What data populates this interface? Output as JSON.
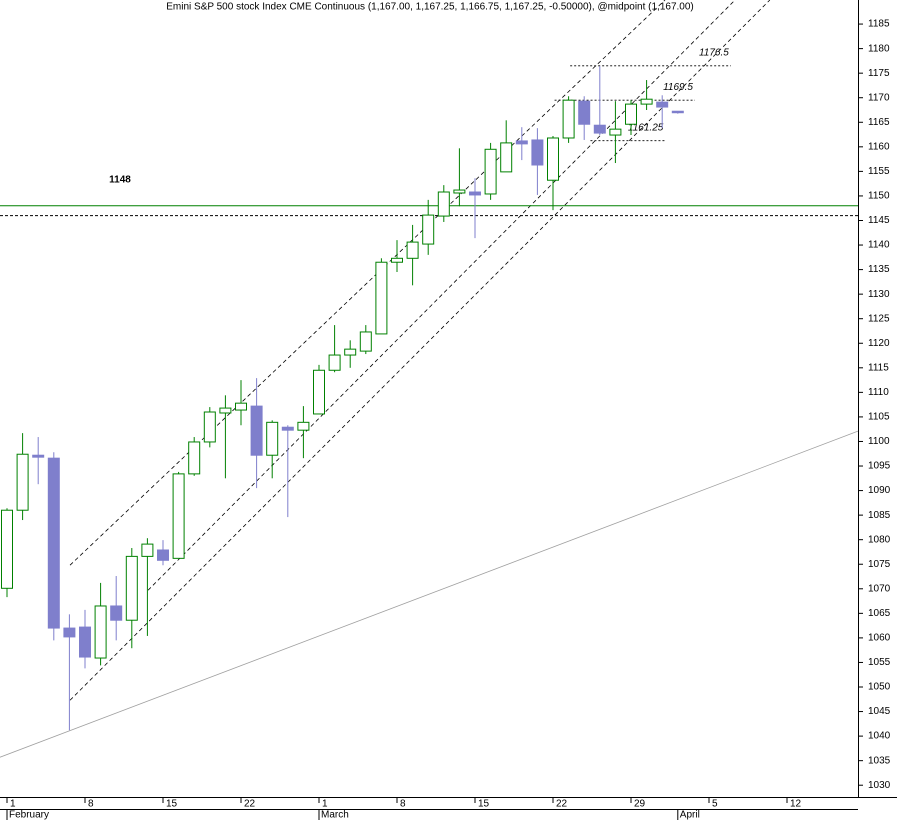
{
  "chart_data": {
    "type": "candlestick",
    "title": "Emini S&P 500 stock Index CME Continuous (1,167.00, 1,167.25, 1,166.75, 1,167.25, -0.50000), @midpoint (1,167.00)",
    "categories": [
      "1",
      null,
      null,
      null,
      null,
      "8",
      null,
      null,
      null,
      null,
      "15",
      null,
      null,
      null,
      null,
      "22",
      null,
      null,
      null,
      null,
      "1",
      null,
      null,
      null,
      null,
      "8",
      null,
      null,
      null,
      null,
      "15",
      null,
      null,
      null,
      null,
      "22",
      null,
      null,
      null,
      null,
      "29",
      null,
      null,
      null,
      null,
      "5",
      null,
      null,
      null,
      null,
      "12",
      null,
      null,
      null,
      null
    ],
    "months": [
      "February",
      null,
      null,
      null,
      null,
      null,
      null,
      null,
      null,
      null,
      null,
      null,
      null,
      null,
      null,
      null,
      null,
      null,
      null,
      null,
      "March",
      null,
      null,
      null,
      null,
      null,
      null,
      null,
      null,
      null,
      null,
      null,
      null,
      null,
      null,
      null,
      null,
      null,
      null,
      null,
      null,
      null,
      null,
      "April",
      null,
      null,
      null,
      null,
      null,
      null,
      null,
      null,
      null,
      null,
      null
    ],
    "open": [
      1070.1,
      1086.0,
      1097.2,
      1096.6,
      1062.0,
      1062.2,
      1055.9,
      1066.5,
      1063.6,
      1076.6,
      1077.9,
      1076.2,
      1093.4,
      1099.9,
      1105.8,
      1106.4,
      1107.2,
      1097.2,
      1102.9,
      1102.3,
      1105.6,
      1114.5,
      1117.6,
      1118.4,
      1121.9,
      1136.5,
      1137.3,
      1140.2,
      1145.9,
      1150.6,
      1150.8,
      1150.4,
      1154.9,
      1161.2,
      1161.4,
      1153.2,
      1161.8,
      1169.3,
      1164.4,
      1162.4,
      1164.6,
      1168.7,
      1169.1,
      1167.25,
      null,
      null,
      null,
      null,
      null,
      null,
      null,
      null,
      null,
      null,
      null
    ],
    "high": [
      1086.4,
      1101.7,
      1100.9,
      1097.8,
      1064.8,
      1065.7,
      1071.2,
      1072.6,
      1078.3,
      1080.3,
      1079.9,
      1093.8,
      1100.9,
      1107.0,
      1109.4,
      1112.5,
      1112.9,
      1104.3,
      1103.3,
      1107.2,
      1115.6,
      1123.7,
      1120.6,
      1123.7,
      1137.3,
      1141.0,
      1144.1,
      1149.2,
      1152.2,
      1159.7,
      1153.6,
      1160.8,
      1165.4,
      1164.0,
      1163.8,
      1162.2,
      1170.3,
      1170.3,
      1176.4,
      1169.3,
      1169.5,
      1173.6,
      1170.5,
      1167.25,
      null,
      null,
      null,
      null,
      null,
      null,
      null,
      null,
      null,
      null,
      null
    ],
    "low": [
      1068.3,
      1084.0,
      1091.3,
      1059.5,
      1041.2,
      1053.8,
      1054.4,
      1059.5,
      1057.9,
      1060.4,
      1074.8,
      1076.2,
      1093.0,
      1098.8,
      1092.5,
      1103.3,
      1090.5,
      1092.5,
      1084.6,
      1096.6,
      1105.6,
      1114.1,
      1115.0,
      1117.8,
      1121.9,
      1134.5,
      1131.8,
      1138.0,
      1144.7,
      1147.9,
      1141.4,
      1149.2,
      1154.9,
      1157.3,
      1150.2,
      1147.1,
      1160.8,
      1161.4,
      1162.4,
      1156.7,
      1162.4,
      1167.5,
      1163.8,
      1166.75,
      null,
      null,
      null,
      null,
      null,
      null,
      null,
      null,
      null,
      null,
      null
    ],
    "close": [
      1086.0,
      1097.4,
      1096.8,
      1062.0,
      1060.2,
      1056.1,
      1066.5,
      1063.6,
      1076.6,
      1079.1,
      1075.8,
      1093.4,
      1099.9,
      1106.0,
      1106.8,
      1107.8,
      1097.2,
      1103.9,
      1102.3,
      1103.9,
      1114.5,
      1117.6,
      1118.8,
      1122.3,
      1136.5,
      1137.3,
      1140.6,
      1146.1,
      1150.8,
      1151.2,
      1150.2,
      1159.5,
      1160.8,
      1160.6,
      1156.3,
      1161.8,
      1169.5,
      1164.6,
      1162.8,
      1163.6,
      1168.7,
      1169.7,
      1168.1,
      1167.0,
      null,
      null,
      null,
      null,
      null,
      null,
      null,
      null,
      null,
      null,
      null
    ],
    "up_color": "#008000",
    "down_color": "#7f7fcc",
    "ylim": [
      1027.6,
      1189.9
    ],
    "yticks": [
      1030,
      1035,
      1040,
      1045,
      1050,
      1055,
      1060,
      1065,
      1070,
      1075,
      1080,
      1085,
      1090,
      1095,
      1100,
      1105,
      1110,
      1115,
      1120,
      1125,
      1130,
      1135,
      1140,
      1145,
      1150,
      1155,
      1160,
      1165,
      1170,
      1175,
      1180,
      1185
    ],
    "hlines": [
      {
        "value": 1148,
        "color": "#008000",
        "dashed": false
      },
      {
        "value": 1146,
        "color": "#000000",
        "dashed": true
      }
    ],
    "annotations": [
      {
        "text": "1148",
        "color": "#008000"
      }
    ],
    "levels": [
      {
        "value": 1176.5,
        "from": 36.1,
        "to": 46.4
      },
      {
        "value": 1169.5,
        "from": 35.1,
        "to": 44.1
      },
      {
        "value": 1161.25,
        "from": 37.4,
        "to": 42.2
      }
    ],
    "trendlines": [
      {
        "x": [
          4.04,
          42.18
        ],
        "y": [
          1074.8,
          1189.9
        ],
        "color": "#000000",
        "dashed": true
      },
      {
        "x": [
          9.04,
          46.67
        ],
        "y": [
          1069.7,
          1189.9
        ],
        "color": "#000000",
        "dashed": true
      },
      {
        "x": [
          4.04,
          48.9
        ],
        "y": [
          1047.3,
          1189.9
        ],
        "color": "#000000",
        "dashed": true
      },
      {
        "x": [
          -0.45,
          54.55
        ],
        "y": [
          1035.7,
          1102.1
        ],
        "color": "#a0a0a0",
        "dashed": false
      }
    ]
  }
}
